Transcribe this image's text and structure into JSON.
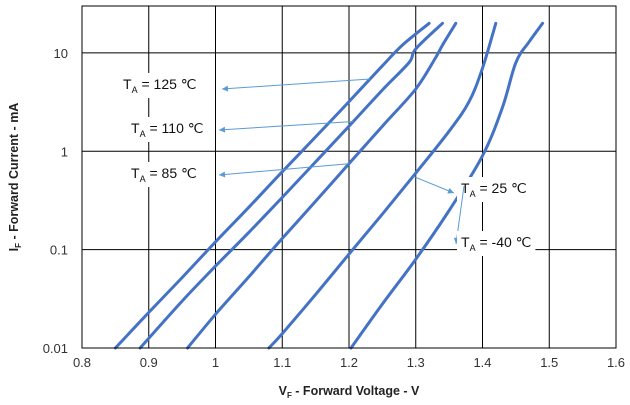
{
  "chart_data": {
    "type": "line",
    "title": "",
    "xlabel": {
      "main": "V",
      "sub": "F",
      "rest": " - Forward Voltage - V"
    },
    "ylabel": {
      "main": "I",
      "sub": "F",
      "rest": " - Forward Current - mA"
    },
    "x_axis": {
      "range": [
        0.8,
        1.6
      ],
      "ticks": [
        0.8,
        0.9,
        1,
        1.1,
        1.2,
        1.3,
        1.4,
        1.5,
        1.6
      ],
      "tick_labels": [
        "0.8",
        "0.9",
        "1",
        "1.1",
        "1.2",
        "1.3",
        "1.4",
        "1.5",
        "1.6"
      ]
    },
    "y_axis": {
      "scale": "log",
      "range": [
        0.01,
        30
      ],
      "ticks": [
        0.01,
        0.1,
        1,
        10
      ],
      "tick_labels": [
        "0.01",
        "0.1",
        "1",
        "10"
      ]
    },
    "grid": true,
    "line_color": "#4472C4",
    "annotation_color": "#5B9BD5",
    "series": [
      {
        "label": {
          "main": "T",
          "sub": "A",
          "rest": " = 125 ℃"
        },
        "points": [
          [
            0.85,
            0.01
          ],
          [
            0.9,
            0.023
          ],
          [
            0.95,
            0.052
          ],
          [
            1.0,
            0.12
          ],
          [
            1.05,
            0.27
          ],
          [
            1.1,
            0.62
          ],
          [
            1.15,
            1.4
          ],
          [
            1.2,
            3.2
          ],
          [
            1.25,
            7.4
          ],
          [
            1.28,
            12
          ],
          [
            1.32,
            20
          ]
        ]
      },
      {
        "label": {
          "main": "T",
          "sub": "A",
          "rest": " = 110 ℃"
        },
        "points": [
          [
            0.887,
            0.01
          ],
          [
            0.95,
            0.03
          ],
          [
            1.0,
            0.068
          ],
          [
            1.05,
            0.15
          ],
          [
            1.1,
            0.34
          ],
          [
            1.15,
            0.78
          ],
          [
            1.2,
            1.8
          ],
          [
            1.25,
            4.2
          ],
          [
            1.29,
            8
          ],
          [
            1.3,
            11
          ],
          [
            1.34,
            20
          ]
        ]
      },
      {
        "label": {
          "main": "T",
          "sub": "A",
          "rest": " = 85 ℃"
        },
        "points": [
          [
            0.958,
            0.01
          ],
          [
            1.0,
            0.022
          ],
          [
            1.05,
            0.053
          ],
          [
            1.1,
            0.13
          ],
          [
            1.15,
            0.31
          ],
          [
            1.2,
            0.75
          ],
          [
            1.25,
            1.8
          ],
          [
            1.3,
            4.3
          ],
          [
            1.33,
            9
          ],
          [
            1.34,
            12
          ],
          [
            1.36,
            20
          ]
        ]
      },
      {
        "label": {
          "main": "T",
          "sub": "A",
          "rest": " = 25 ℃"
        },
        "points": [
          [
            1.08,
            0.01
          ],
          [
            1.1,
            0.014
          ],
          [
            1.15,
            0.035
          ],
          [
            1.2,
            0.09
          ],
          [
            1.25,
            0.23
          ],
          [
            1.3,
            0.6
          ],
          [
            1.35,
            1.6
          ],
          [
            1.38,
            3.2
          ],
          [
            1.4,
            7
          ],
          [
            1.42,
            20
          ]
        ]
      },
      {
        "label": {
          "main": "T",
          "sub": "A",
          "rest": " = -40 ℃"
        },
        "points": [
          [
            1.203,
            0.01
          ],
          [
            1.25,
            0.028
          ],
          [
            1.3,
            0.08
          ],
          [
            1.35,
            0.25
          ],
          [
            1.4,
            0.9
          ],
          [
            1.43,
            2.8
          ],
          [
            1.45,
            8
          ],
          [
            1.47,
            13
          ],
          [
            1.49,
            20
          ]
        ]
      }
    ]
  }
}
